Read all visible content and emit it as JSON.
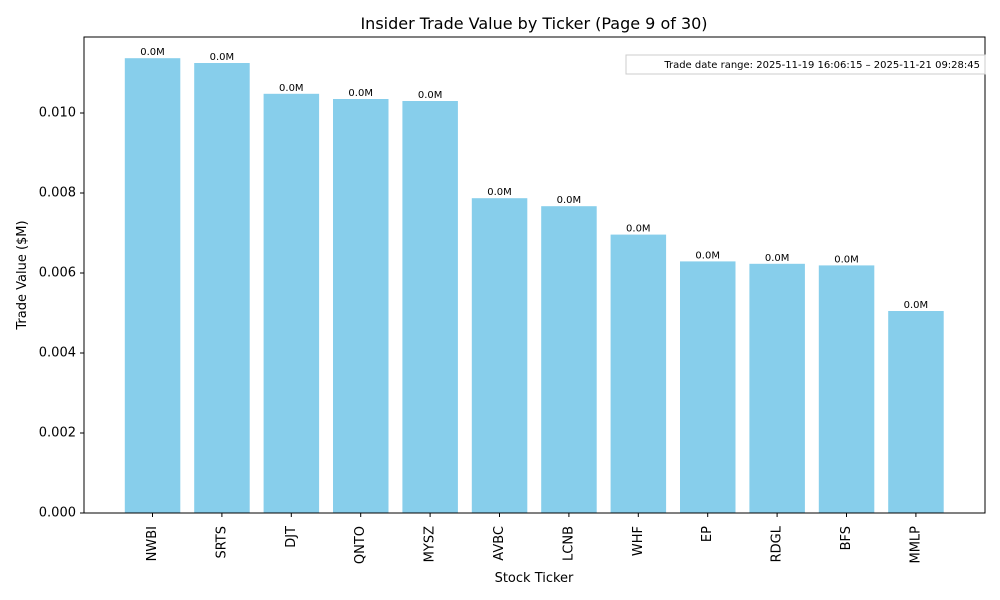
{
  "chart_data": {
    "type": "bar",
    "title": "Insider Trade Value by Ticker (Page 9 of 30)",
    "xlabel": "Stock Ticker",
    "ylabel": "Trade Value ($M)",
    "ylim": [
      0,
      0.0119
    ],
    "yticks": [
      0.0,
      0.002,
      0.004,
      0.006,
      0.008,
      0.01
    ],
    "ytick_labels": [
      "0.000",
      "0.002",
      "0.004",
      "0.006",
      "0.008",
      "0.010"
    ],
    "categories": [
      "NWBI",
      "SRTS",
      "DJT",
      "QNTO",
      "MYSZ",
      "AVBC",
      "LCNB",
      "WHF",
      "EP",
      "RDGL",
      "BFS",
      "MMLP"
    ],
    "values": [
      0.01137,
      0.01125,
      0.01048,
      0.01035,
      0.0103,
      0.00787,
      0.00767,
      0.00696,
      0.00629,
      0.00623,
      0.00619,
      0.00505
    ],
    "data_labels": [
      "0.0M",
      "0.0M",
      "0.0M",
      "0.0M",
      "0.0M",
      "0.0M",
      "0.0M",
      "0.0M",
      "0.0M",
      "0.0M",
      "0.0M",
      "0.0M"
    ],
    "bar_color": "#87ceeb",
    "annotation": "Trade date range: 2025-11-19 16:06:15 – 2025-11-21 09:28:45",
    "grid": false,
    "legend": "none"
  }
}
